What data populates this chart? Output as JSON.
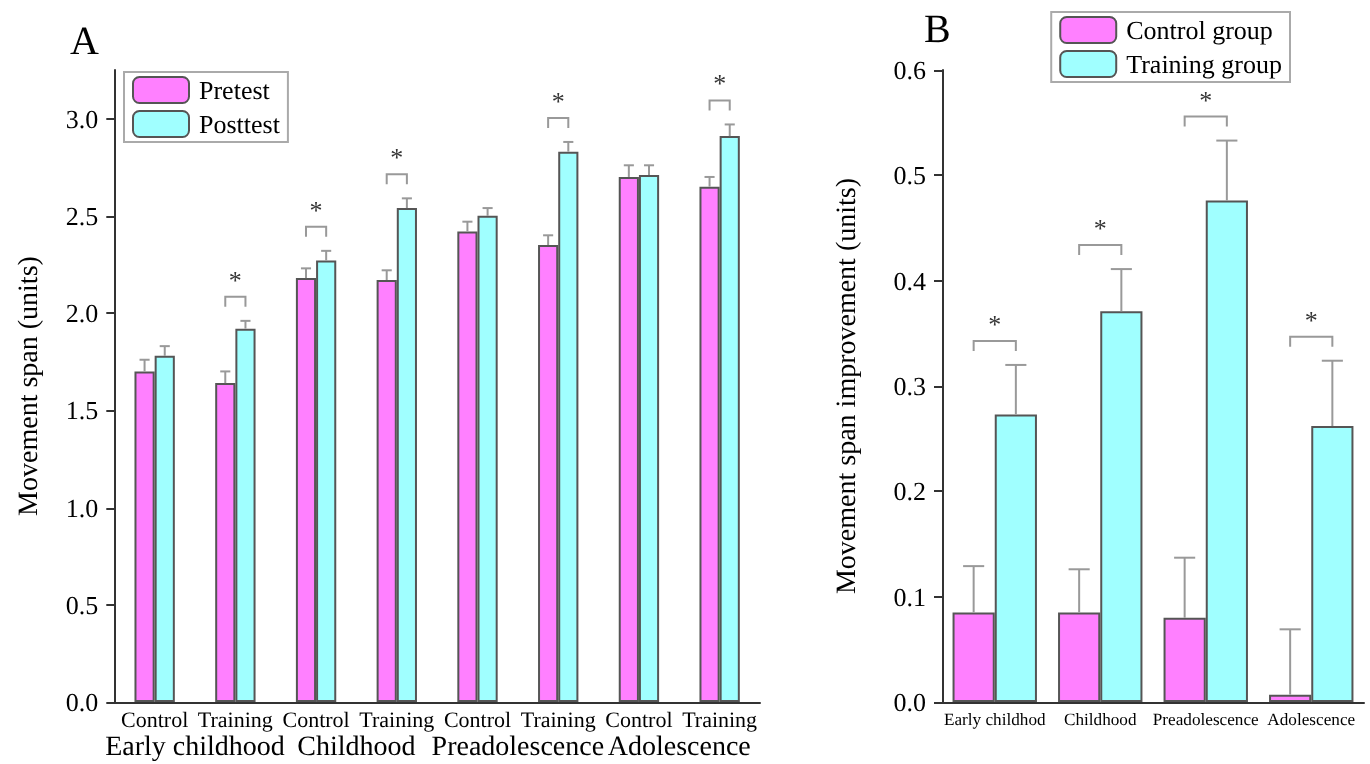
{
  "chart_data": [
    {
      "type": "bar",
      "title": "A",
      "ylabel": "Movement span (units)",
      "categories": [
        "Control",
        "Training",
        "Control",
        "Training",
        "Control",
        "Training",
        "Control",
        "Training"
      ],
      "series": [
        {
          "name": "Pretest",
          "color": "#ff80ff",
          "values": [
            1.7,
            1.64,
            2.18,
            2.17,
            2.42,
            2.35,
            2.7,
            2.65
          ],
          "errors": [
            [
              1.7,
              1.76
            ],
            [
              1.64,
              1.7
            ],
            [
              2.18,
              2.23
            ],
            [
              2.17,
              2.22
            ],
            [
              2.42,
              2.47
            ],
            [
              2.35,
              2.4
            ],
            [
              2.7,
              2.76
            ],
            [
              2.65,
              2.7
            ]
          ]
        },
        {
          "name": "Posttest",
          "color": "#a0ffff",
          "values": [
            1.78,
            1.92,
            2.27,
            2.54,
            2.5,
            2.83,
            2.71,
            2.91
          ],
          "errors": [
            [
              1.78,
              1.83
            ],
            [
              1.92,
              1.96
            ],
            [
              2.27,
              2.32
            ],
            [
              2.54,
              2.59
            ],
            [
              2.5,
              2.54
            ],
            [
              2.83,
              2.88
            ],
            [
              2.71,
              2.76
            ],
            [
              2.91,
              2.97
            ]
          ]
        }
      ],
      "ylim": [
        0,
        3.25
      ],
      "yticks": [
        {
          "value": 0,
          "label": "0.0"
        },
        0.5,
        {
          "value": 1,
          "label": "1.0"
        },
        1.5,
        {
          "value": 2,
          "label": "2.0"
        },
        2.5,
        {
          "value": 3,
          "label": "3.0"
        }
      ],
      "annotations": [
        "Early childhood",
        "Childhood",
        "Preadolescence",
        "Adolescence",
        "*",
        "*",
        "*",
        "*",
        "*"
      ],
      "legend": "top left",
      "grid": false
    },
    {
      "type": "bar",
      "title": "B",
      "ylabel": "Movement span improvement (units)",
      "categories": [
        "Early childhod",
        "Childhood",
        "Preadolescence",
        "Adolescence"
      ],
      "series": [
        {
          "name": "Control group",
          "color": "#ff80ff",
          "values": [
            0.085,
            0.085,
            0.08,
            0.007
          ],
          "errors": [
            [
              0.085,
              0.129
            ],
            [
              0.085,
              0.126
            ],
            [
              0.08,
              0.137
            ],
            [
              0.007,
              0.069
            ]
          ]
        },
        {
          "name": "Training group",
          "color": "#a0ffff",
          "values": [
            0.273,
            0.371,
            0.476,
            0.262
          ],
          "errors": [
            [
              0.273,
              0.32
            ],
            [
              0.371,
              0.411
            ],
            [
              0.476,
              0.533
            ],
            [
              0.262,
              0.324
            ]
          ]
        }
      ],
      "ylim": [
        0,
        0.6
      ],
      "yticks": [
        {
          "value": 0,
          "label": "0.0"
        },
        0.1,
        0.2,
        0.3,
        0.4,
        0.5,
        0.6
      ],
      "annotations": [
        "*",
        "*",
        "*",
        "*"
      ],
      "legend": "top right",
      "grid": false
    }
  ]
}
